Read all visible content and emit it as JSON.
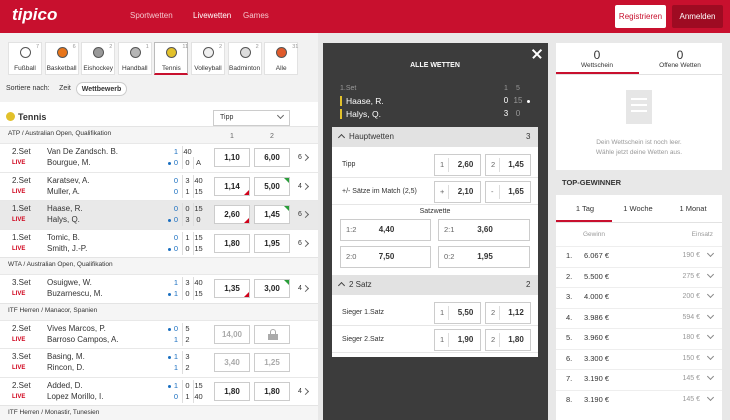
{
  "header": {
    "logo": "tipico",
    "nav": [
      "Sportwetten",
      "Livewetten",
      "Games"
    ],
    "nav_active": 1,
    "register": "Registrieren",
    "login": "Anmelden"
  },
  "sports": [
    {
      "name": "Fußball",
      "count": 7
    },
    {
      "name": "Basketball",
      "count": 6
    },
    {
      "name": "Eishockey",
      "count": 2
    },
    {
      "name": "Handball",
      "count": 1
    },
    {
      "name": "Tennis",
      "count": 11
    },
    {
      "name": "Volleyball",
      "count": 2
    },
    {
      "name": "Badminton",
      "count": 2
    },
    {
      "name": "Alle",
      "count": 31
    }
  ],
  "sports_active": 4,
  "sort": {
    "label": "Sortiere nach:",
    "options": [
      "Zeit",
      "Wettbewerb"
    ],
    "active": 1
  },
  "list": {
    "title": "Tennis",
    "dropdown": "Tipp",
    "columns": [
      "1",
      "2"
    ],
    "groups": [
      {
        "name": "ATP / Australian Open, Qualifikation",
        "matches": [
          {
            "set": "2.Set",
            "status": "LIVE",
            "players": [
              "Van De Zandsch. B.",
              "Bourgue, M."
            ],
            "scores": [
              [
                "1",
                "40"
              ],
              [
                "0",
                "0",
                "A"
              ]
            ],
            "serve": 1,
            "odds": [
              "1,10",
              "6,00"
            ],
            "trend": [
              null,
              null
            ],
            "more": 6
          },
          {
            "set": "2.Set",
            "status": "LIVE",
            "players": [
              "Karatsev, A.",
              "Muller, A."
            ],
            "scores": [
              [
                "0",
                "3",
                "40"
              ],
              [
                "0",
                "1",
                "15"
              ]
            ],
            "serve": null,
            "odds": [
              "1,14",
              "5,00"
            ],
            "trend": [
              "down",
              "up"
            ],
            "more": 4
          },
          {
            "set": "1.Set",
            "status": "LIVE",
            "players": [
              "Haase, R.",
              "Halys, Q."
            ],
            "scores": [
              [
                "0",
                "0",
                "15"
              ],
              [
                "0",
                "3",
                "0"
              ]
            ],
            "serve": 1,
            "odds": [
              "2,60",
              "1,45"
            ],
            "trend": [
              "down",
              "up"
            ],
            "more": 6,
            "selected": true
          },
          {
            "set": "1.Set",
            "status": "LIVE",
            "players": [
              "Tomic, B.",
              "Smith, J.-P."
            ],
            "scores": [
              [
                "0",
                "1",
                "15"
              ],
              [
                "0",
                "0",
                "15"
              ]
            ],
            "serve": 1,
            "odds": [
              "1,80",
              "1,95"
            ],
            "trend": [
              null,
              null
            ],
            "more": 6
          }
        ]
      },
      {
        "name": "WTA / Australian Open, Qualifikation",
        "matches": [
          {
            "set": "3.Set",
            "status": "LIVE",
            "players": [
              "Osuigwe, W.",
              "Buzarnescu, M."
            ],
            "scores": [
              [
                "1",
                "3",
                "40"
              ],
              [
                "1",
                "0",
                "15"
              ]
            ],
            "serve": 1,
            "odds": [
              "1,35",
              "3,00"
            ],
            "trend": [
              "down",
              "up"
            ],
            "more": 4
          }
        ]
      },
      {
        "name": "ITF Herren / Manacor, Spanien",
        "matches": [
          {
            "set": "2.Set",
            "status": "LIVE",
            "players": [
              "Vives Marcos, P.",
              "Barroso Campos, A."
            ],
            "scores": [
              [
                "0",
                "5"
              ],
              [
                "1",
                "2"
              ]
            ],
            "serve": 0,
            "odds": [
              "14,00",
              null
            ],
            "trend": [
              null,
              null
            ],
            "more": null,
            "suspended": true
          },
          {
            "set": "3.Set",
            "status": "LIVE",
            "players": [
              "Basing, M.",
              "Rincon, D."
            ],
            "scores": [
              [
                "1",
                "3"
              ],
              [
                "1",
                "2"
              ]
            ],
            "serve": 0,
            "odds": [
              "3,40",
              "1,25"
            ],
            "trend": [
              null,
              null
            ],
            "more": null,
            "suspended": true
          },
          {
            "set": "2.Set",
            "status": "LIVE",
            "players": [
              "Added, D.",
              "Lopez Morillo, I."
            ],
            "scores": [
              [
                "1",
                "0",
                "15"
              ],
              [
                "0",
                "1",
                "40"
              ]
            ],
            "serve": 0,
            "odds": [
              "1,80",
              "1,80"
            ],
            "trend": [
              null,
              null
            ],
            "more": 4
          }
        ]
      },
      {
        "name": "ITF Herren / Monastir, Tunesien",
        "matches": []
      }
    ]
  },
  "detail": {
    "title": "ALLE WETTEN",
    "set": "1.Set",
    "score_heads": [
      "1",
      "5"
    ],
    "serve": 0,
    "players": [
      {
        "name": "Haase, R.",
        "score": [
          "0",
          "15"
        ]
      },
      {
        "name": "Halys, Q.",
        "score": [
          "3",
          "0"
        ]
      }
    ],
    "sections": [
      {
        "title": "Hauptwetten",
        "count": 3,
        "markets": [
          {
            "label": "Tipp",
            "options": [
              {
                "key": "1",
                "odd": "2,60"
              },
              {
                "key": "2",
                "odd": "1,45"
              }
            ]
          },
          {
            "label": "+/- Sätze im Match (2,5)",
            "options": [
              {
                "key": "+",
                "odd": "2,10"
              },
              {
                "key": "-",
                "odd": "1,65"
              }
            ]
          },
          {
            "label": "Satzwette",
            "grid": [
              {
                "key": "1:2",
                "odd": "4,40"
              },
              {
                "key": "2:1",
                "odd": "3,60"
              },
              {
                "key": "2:0",
                "odd": "7,50"
              },
              {
                "key": "0:2",
                "odd": "1,95"
              }
            ]
          }
        ]
      },
      {
        "title": "2 Satz",
        "count": 2,
        "markets": [
          {
            "label": "Sieger 1.Satz",
            "options": [
              {
                "key": "1",
                "odd": "5,50"
              },
              {
                "key": "2",
                "odd": "1,12"
              }
            ]
          },
          {
            "label": "Sieger 2.Satz",
            "options": [
              {
                "key": "1",
                "odd": "1,90"
              },
              {
                "key": "2",
                "odd": "1,80"
              }
            ]
          }
        ]
      }
    ]
  },
  "betslip": {
    "tabs": [
      {
        "count": 0,
        "label": "Wettschein"
      },
      {
        "count": 0,
        "label": "Offene Wetten"
      }
    ],
    "active": 0,
    "empty": [
      "Dein Wettschein ist noch leer.",
      "Wähle jetzt deine Wetten aus."
    ]
  },
  "top": {
    "title": "TOP-GEWINNER",
    "tabs": [
      "1 Tag",
      "1 Woche",
      "1 Monat"
    ],
    "active": 0,
    "heads": [
      "Gewinn",
      "Einsatz"
    ],
    "rows": [
      {
        "rank": "1.",
        "win": "6.067 €",
        "stake": "190 €"
      },
      {
        "rank": "2.",
        "win": "5.500 €",
        "stake": "275 €"
      },
      {
        "rank": "3.",
        "win": "4.000 €",
        "stake": "200 €"
      },
      {
        "rank": "4.",
        "win": "3.986 €",
        "stake": "594 €"
      },
      {
        "rank": "5.",
        "win": "3.960 €",
        "stake": "180 €"
      },
      {
        "rank": "6.",
        "win": "3.300 €",
        "stake": "150 €"
      },
      {
        "rank": "7.",
        "win": "3.190 €",
        "stake": "145 €"
      },
      {
        "rank": "8.",
        "win": "3.190 €",
        "stake": "145 €"
      }
    ]
  }
}
